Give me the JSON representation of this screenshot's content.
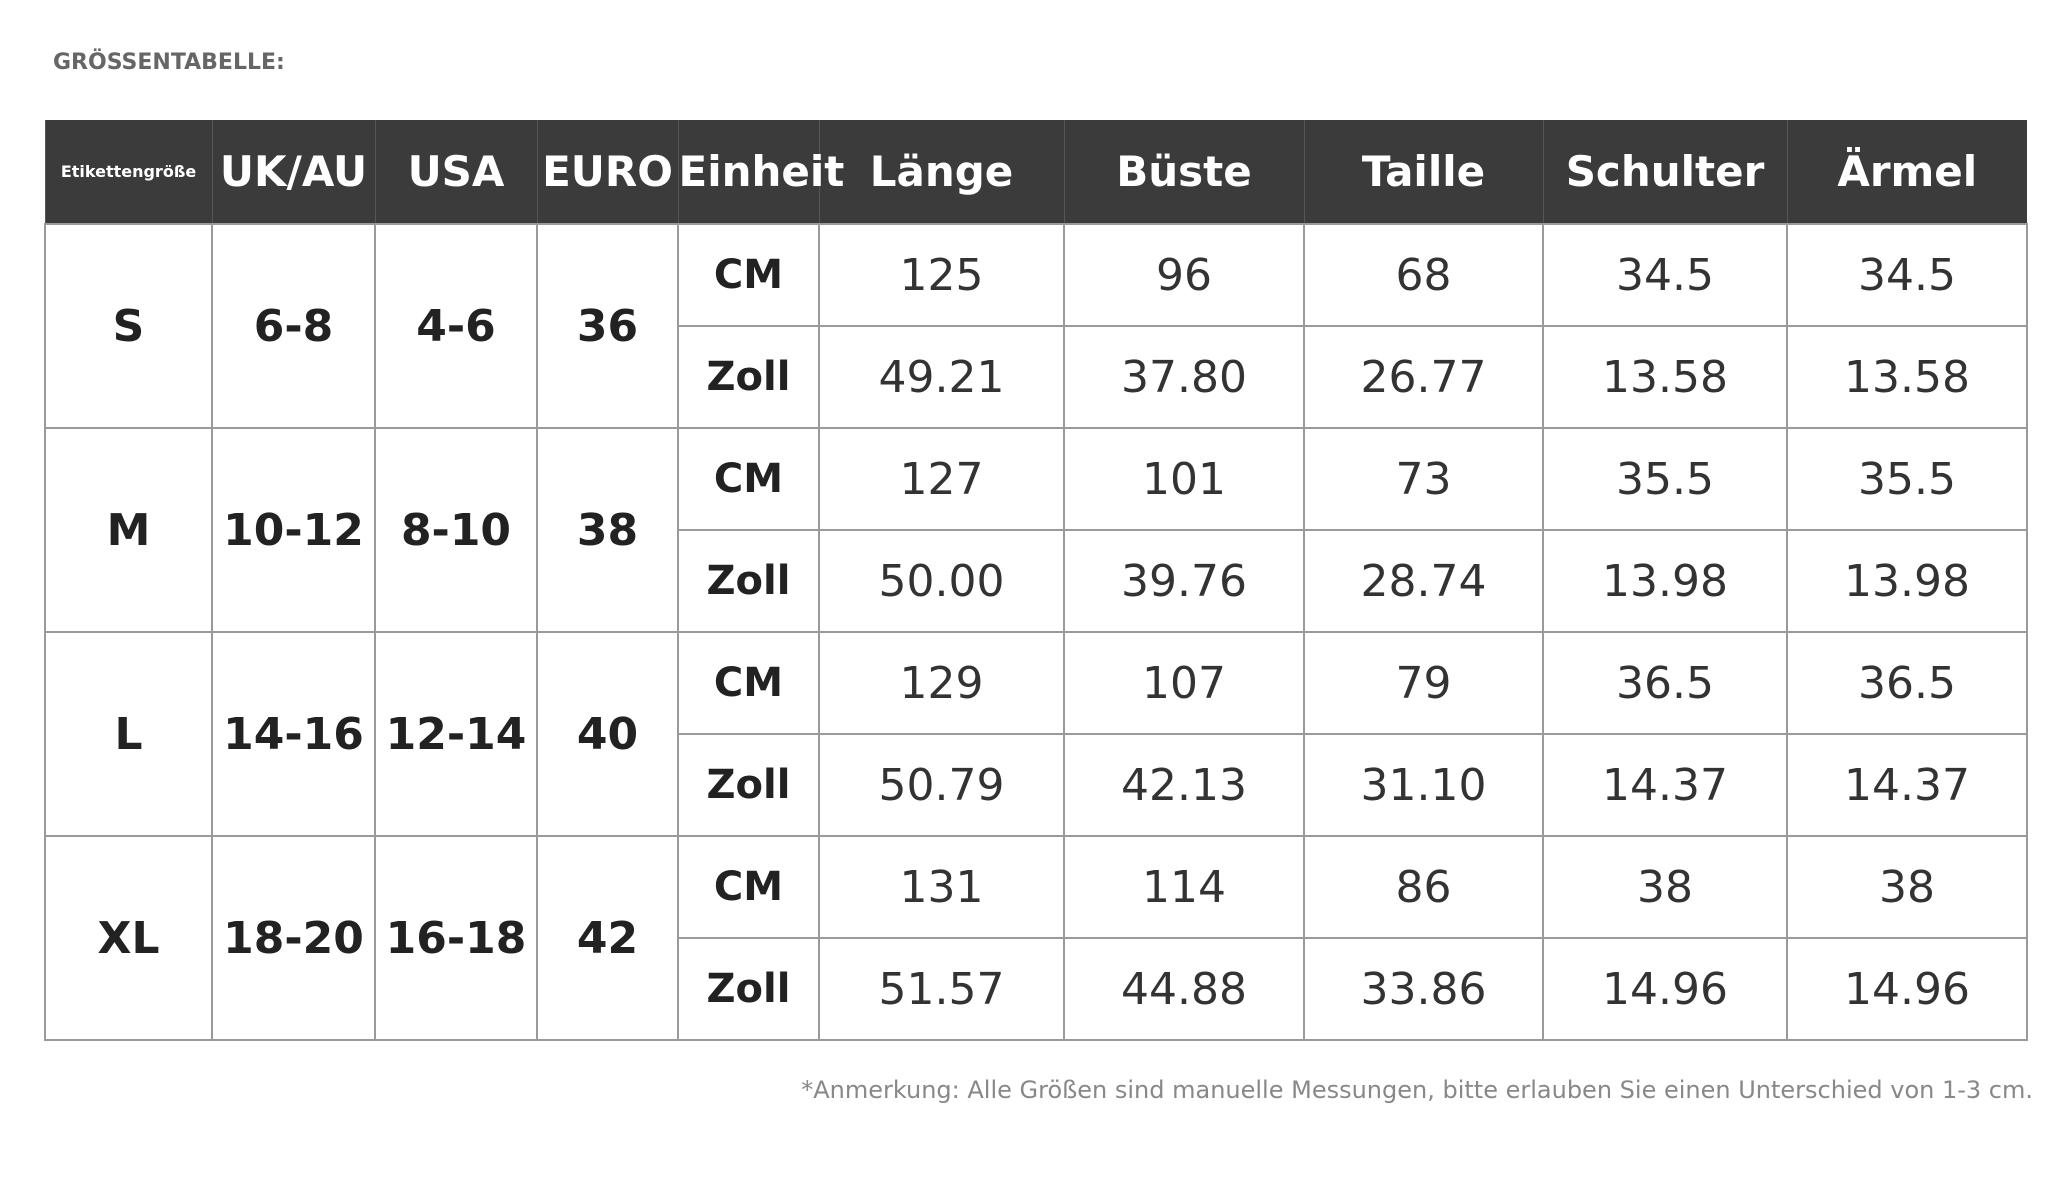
{
  "title": "GRÖSSENTABELLE:",
  "table": {
    "headers": [
      "Etikettengröße",
      "UK/AU",
      "USA",
      "EURO",
      "Einheit",
      "Länge",
      "Büste",
      "Taille",
      "Schulter",
      "Ärmel"
    ],
    "rows": [
      {
        "size": "S",
        "uk_au": "6-8",
        "usa": "4-6",
        "euro": "36",
        "units": [
          {
            "unit": "CM",
            "values": [
              "125",
              "96",
              "68",
              "34.5",
              "34.5"
            ]
          },
          {
            "unit": "Zoll",
            "values": [
              "49.21",
              "37.80",
              "26.77",
              "13.58",
              "13.58"
            ]
          }
        ]
      },
      {
        "size": "M",
        "uk_au": "10-12",
        "usa": "8-10",
        "euro": "38",
        "units": [
          {
            "unit": "CM",
            "values": [
              "127",
              "101",
              "73",
              "35.5",
              "35.5"
            ]
          },
          {
            "unit": "Zoll",
            "values": [
              "50.00",
              "39.76",
              "28.74",
              "13.98",
              "13.98"
            ]
          }
        ]
      },
      {
        "size": "L",
        "uk_au": "14-16",
        "usa": "12-14",
        "euro": "40",
        "units": [
          {
            "unit": "CM",
            "values": [
              "129",
              "107",
              "79",
              "36.5",
              "36.5"
            ]
          },
          {
            "unit": "Zoll",
            "values": [
              "50.79",
              "42.13",
              "31.10",
              "14.37",
              "14.37"
            ]
          }
        ]
      },
      {
        "size": "XL",
        "uk_au": "18-20",
        "usa": "16-18",
        "euro": "42",
        "units": [
          {
            "unit": "CM",
            "values": [
              "131",
              "114",
              "86",
              "38",
              "38"
            ]
          },
          {
            "unit": "Zoll",
            "values": [
              "51.57",
              "44.88",
              "33.86",
              "14.96",
              "14.96"
            ]
          }
        ]
      }
    ]
  },
  "note": "*Anmerkung: Alle Größen sind manuelle Messungen, bitte erlauben Sie einen Unterschied von 1-3 cm."
}
